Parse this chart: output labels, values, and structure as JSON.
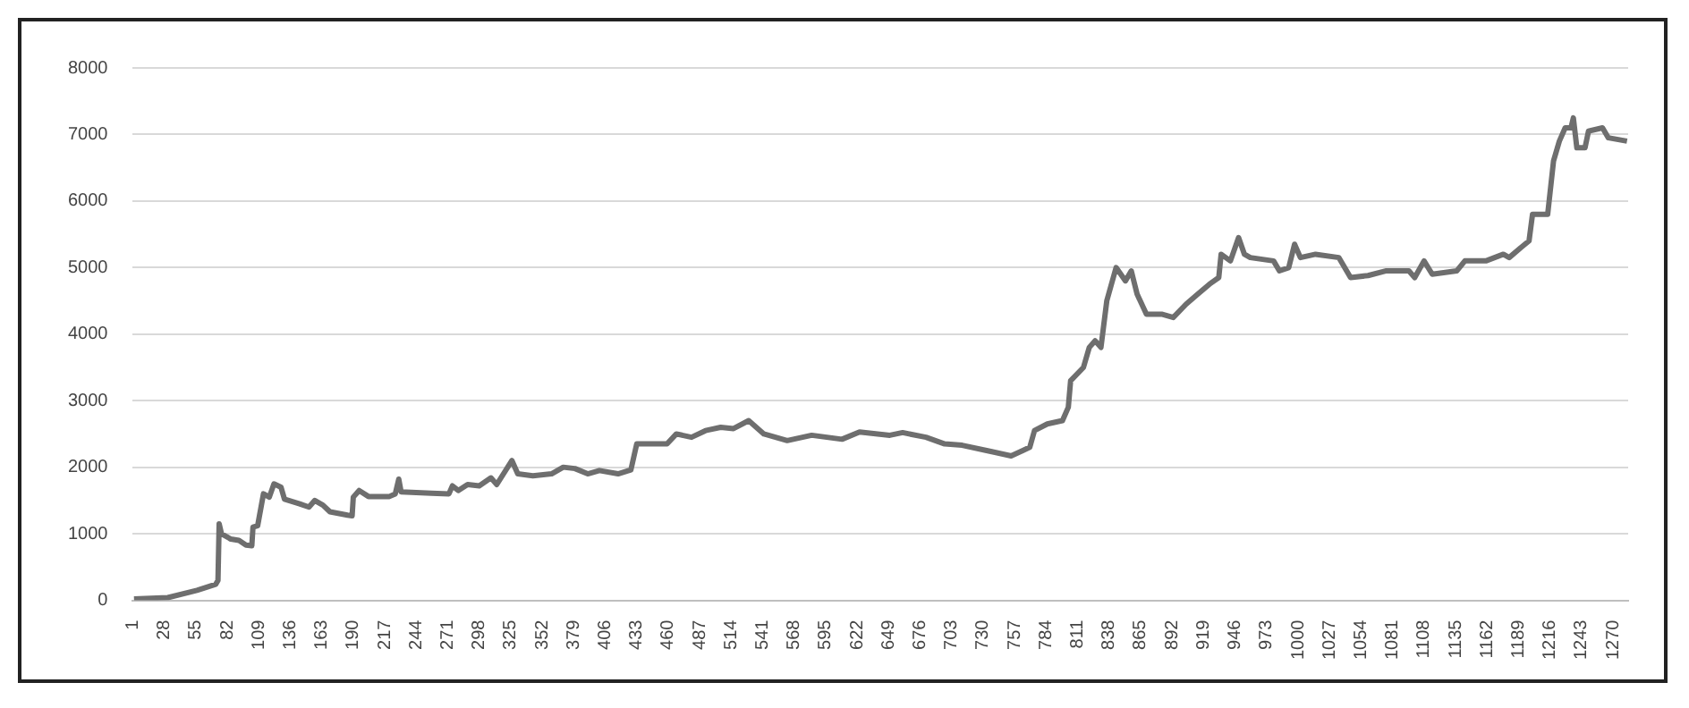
{
  "chart_data": {
    "type": "line",
    "x": [
      2,
      31,
      56,
      72,
      74,
      75,
      77,
      85,
      92,
      98,
      103,
      104,
      108,
      113,
      118,
      122,
      128,
      131,
      144,
      152,
      157,
      164,
      170,
      185,
      189,
      190,
      195,
      203,
      221,
      226,
      229,
      231,
      257,
      272,
      275,
      280,
      288,
      298,
      308,
      313,
      326,
      331,
      344,
      360,
      370,
      380,
      391,
      401,
      417,
      428,
      433,
      459,
      467,
      480,
      492,
      505,
      516,
      529,
      542,
      562,
      583,
      609,
      624,
      650,
      661,
      681,
      697,
      712,
      733,
      754,
      764,
      770,
      774,
      785,
      798,
      803,
      805,
      816,
      821,
      826,
      831,
      836,
      844,
      852,
      857,
      862,
      870,
      883,
      893,
      904,
      914,
      924,
      932,
      934,
      942,
      949,
      954,
      959,
      979,
      984,
      992,
      997,
      1002,
      1015,
      1035,
      1045,
      1060,
      1075,
      1095,
      1100,
      1108,
      1115,
      1136,
      1143,
      1161,
      1176,
      1181,
      1191,
      1198,
      1201,
      1214,
      1219,
      1224,
      1229,
      1234,
      1236,
      1239,
      1246,
      1249,
      1261,
      1266,
      1282
    ],
    "series": [
      {
        "color": "#6e6e6e",
        "values": [
          20,
          40,
          150,
          240,
          300,
          1150,
          1000,
          920,
          900,
          830,
          820,
          1100,
          1120,
          1600,
          1550,
          1750,
          1700,
          1520,
          1450,
          1400,
          1500,
          1430,
          1330,
          1280,
          1270,
          1550,
          1650,
          1560,
          1560,
          1600,
          1820,
          1630,
          1610,
          1600,
          1720,
          1650,
          1740,
          1720,
          1840,
          1740,
          2100,
          1900,
          1870,
          1900,
          2000,
          1980,
          1900,
          1950,
          1900,
          1960,
          2350,
          2350,
          2500,
          2450,
          2550,
          2600,
          2580,
          2700,
          2500,
          2400,
          2480,
          2420,
          2530,
          2480,
          2520,
          2450,
          2350,
          2330,
          2250,
          2170,
          2250,
          2300,
          2550,
          2650,
          2700,
          2900,
          3300,
          3500,
          3800,
          3900,
          3800,
          4500,
          5000,
          4800,
          4950,
          4600,
          4300,
          4300,
          4250,
          4450,
          4600,
          4750,
          4850,
          5200,
          5100,
          5450,
          5200,
          5150,
          5100,
          4950,
          5000,
          5350,
          5150,
          5200,
          5150,
          4850,
          4880,
          4950,
          4950,
          4850,
          5100,
          4900,
          4950,
          5100,
          5100,
          5200,
          5150,
          5300,
          5400,
          5800,
          5800,
          6600,
          6900,
          7100,
          7100,
          7250,
          6800,
          6800,
          7050,
          7100,
          6950,
          6900
        ]
      }
    ],
    "xlim": [
      1,
      1283
    ],
    "xticks": [
      1,
      28,
      55,
      82,
      109,
      136,
      163,
      190,
      217,
      244,
      271,
      298,
      325,
      352,
      379,
      406,
      433,
      460,
      487,
      514,
      541,
      568,
      595,
      622,
      649,
      676,
      703,
      730,
      757,
      784,
      811,
      838,
      865,
      892,
      919,
      946,
      973,
      1000,
      1027,
      1054,
      1081,
      1108,
      1135,
      1162,
      1189,
      1216,
      1243,
      1270
    ],
    "ylim": [
      0,
      8000
    ],
    "yticks": [
      0,
      1000,
      2000,
      3000,
      4000,
      5000,
      6000,
      7000,
      8000
    ],
    "grid": "y",
    "legend": false,
    "marker": "none",
    "line_style": "solid"
  }
}
